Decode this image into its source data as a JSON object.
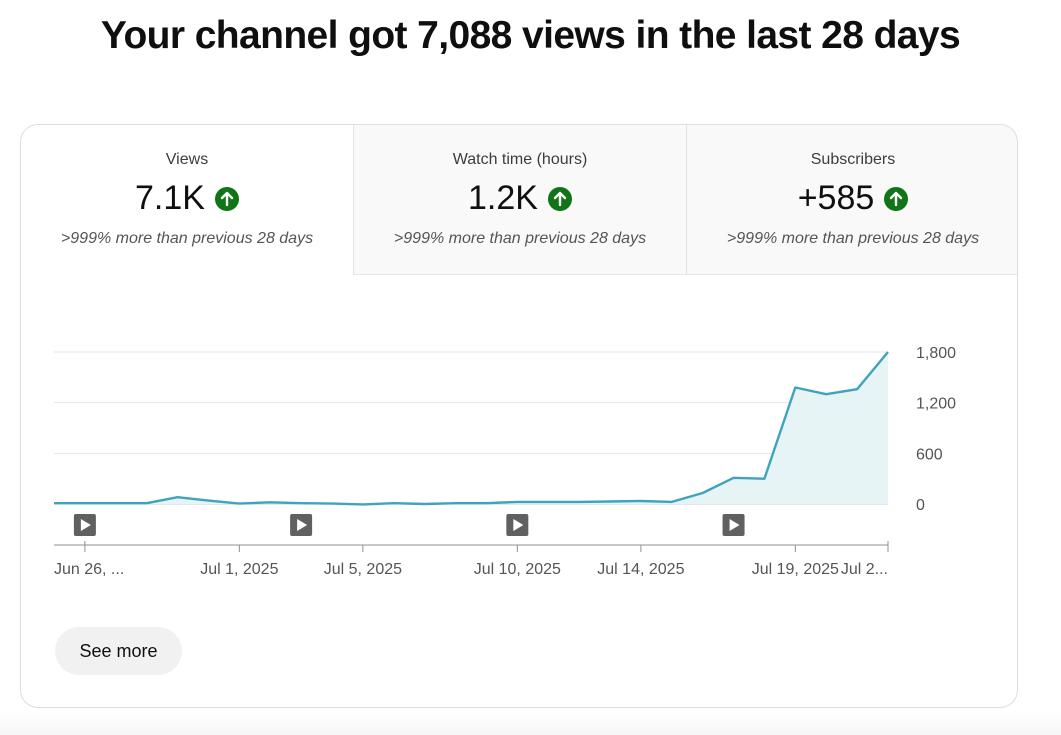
{
  "headline": "Your channel got 7,088 views in the last 28 days",
  "tabs": [
    {
      "label": "Views",
      "value": "7.1K",
      "trend_icon": "arrow-up-circle-icon",
      "comparison": ">999% more than previous 28 days"
    },
    {
      "label": "Watch time (hours)",
      "value": "1.2K",
      "trend_icon": "arrow-up-circle-icon",
      "comparison": ">999% more than previous 28 days"
    },
    {
      "label": "Subscribers",
      "value": "+585",
      "trend_icon": "arrow-up-circle-icon",
      "comparison": ">999% more than previous 28 days"
    }
  ],
  "colors": {
    "line": "#3ea4bd",
    "fill": "#e6f4f6",
    "trend_up": "#107516",
    "marker": "#606060"
  },
  "chart_data": {
    "type": "area",
    "x": [
      "2025-06-25",
      "2025-06-26",
      "2025-06-27",
      "2025-06-28",
      "2025-06-29",
      "2025-06-30",
      "2025-07-01",
      "2025-07-02",
      "2025-07-03",
      "2025-07-04",
      "2025-07-05",
      "2025-07-06",
      "2025-07-07",
      "2025-07-08",
      "2025-07-09",
      "2025-07-10",
      "2025-07-11",
      "2025-07-12",
      "2025-07-13",
      "2025-07-14",
      "2025-07-15",
      "2025-07-16",
      "2025-07-17",
      "2025-07-18",
      "2025-07-19",
      "2025-07-20",
      "2025-07-21",
      "2025-07-22"
    ],
    "series": [
      {
        "values": [
          10,
          10,
          10,
          10,
          80,
          40,
          5,
          20,
          10,
          5,
          -5,
          10,
          0,
          10,
          10,
          25,
          25,
          25,
          30,
          35,
          25,
          130,
          310,
          300,
          1380,
          1300,
          1360,
          1800
        ]
      }
    ],
    "x_tick_labels": [
      {
        "x": "2025-06-26",
        "label": "Jun 26, ..."
      },
      {
        "x": "2025-07-01",
        "label": "Jul 1, 2025"
      },
      {
        "x": "2025-07-05",
        "label": "Jul 5, 2025"
      },
      {
        "x": "2025-07-10",
        "label": "Jul 10, 2025"
      },
      {
        "x": "2025-07-14",
        "label": "Jul 14, 2025"
      },
      {
        "x": "2025-07-19",
        "label": "Jul 19, 2025"
      },
      {
        "x": "2025-07-22",
        "label": "Jul 2..."
      }
    ],
    "y_ticks": [
      {
        "value": 0,
        "label": "0"
      },
      {
        "value": 600,
        "label": "600"
      },
      {
        "value": 1200,
        "label": "1,200"
      },
      {
        "value": 1800,
        "label": "1,800"
      }
    ],
    "ylim": [
      0,
      1800
    ],
    "video_markers": [
      "2025-06-26",
      "2025-07-03",
      "2025-07-10",
      "2025-07-17"
    ],
    "grid": true
  },
  "see_more_label": "See more"
}
